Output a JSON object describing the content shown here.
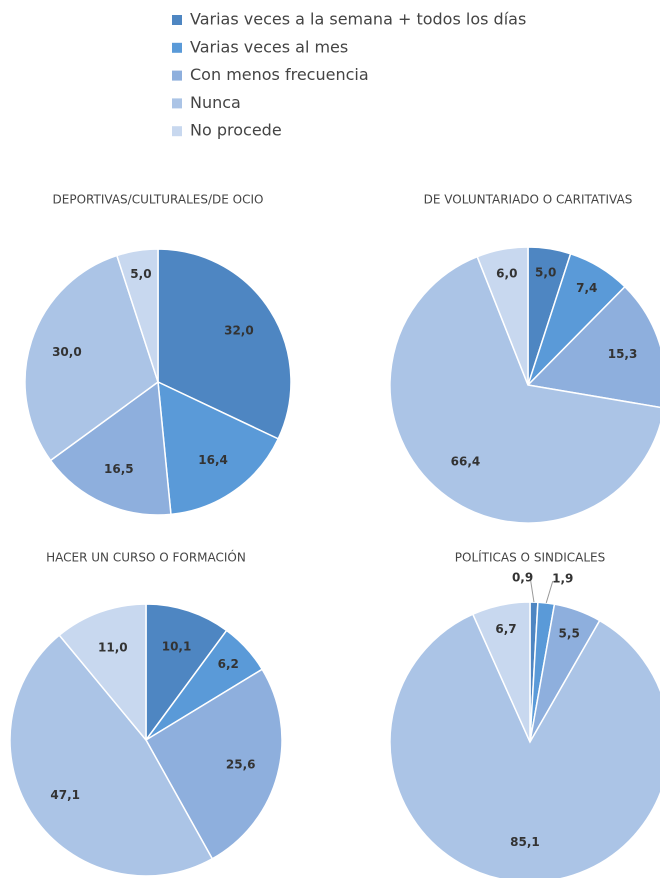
{
  "legend": {
    "categories": [
      "Varias veces a la semana + todos los días",
      "Varias veces al mes",
      "Con menos frecuencia",
      "Nunca",
      "No procede"
    ],
    "colors": [
      "#4e86c2",
      "#5a9ad8",
      "#8eafdd",
      "#abc4e6",
      "#c8d8ef"
    ]
  },
  "chart_data": [
    {
      "type": "pie",
      "title": "DEPORTIVAS/CULTURALES/DE OCIO",
      "values": [
        32.0,
        16.4,
        16.5,
        30.0,
        5.0
      ],
      "value_labels": [
        "32,0",
        "16,4",
        "16,5",
        "30,0",
        "5,0"
      ]
    },
    {
      "type": "pie",
      "title": "DE VOLUNTARIADO O CARITATIVAS",
      "values": [
        5.0,
        7.4,
        15.3,
        66.4,
        6.0
      ],
      "value_labels": [
        "5,0",
        "7,4",
        "15,3",
        "66,4",
        "6,0"
      ]
    },
    {
      "type": "pie",
      "title": "HACER UN CURSO O FORMACIÓN",
      "values": [
        10.1,
        6.2,
        25.6,
        47.1,
        11.0
      ],
      "value_labels": [
        "10,1",
        "6,2",
        "25,6",
        "47,1",
        "11,0"
      ]
    },
    {
      "type": "pie",
      "title": "POLÍTICAS O SINDICALES",
      "values": [
        0.9,
        1.9,
        5.5,
        85.1,
        6.7
      ],
      "value_labels": [
        "0,9",
        "1,9",
        "5,5",
        "85,1",
        "6,7"
      ]
    }
  ]
}
